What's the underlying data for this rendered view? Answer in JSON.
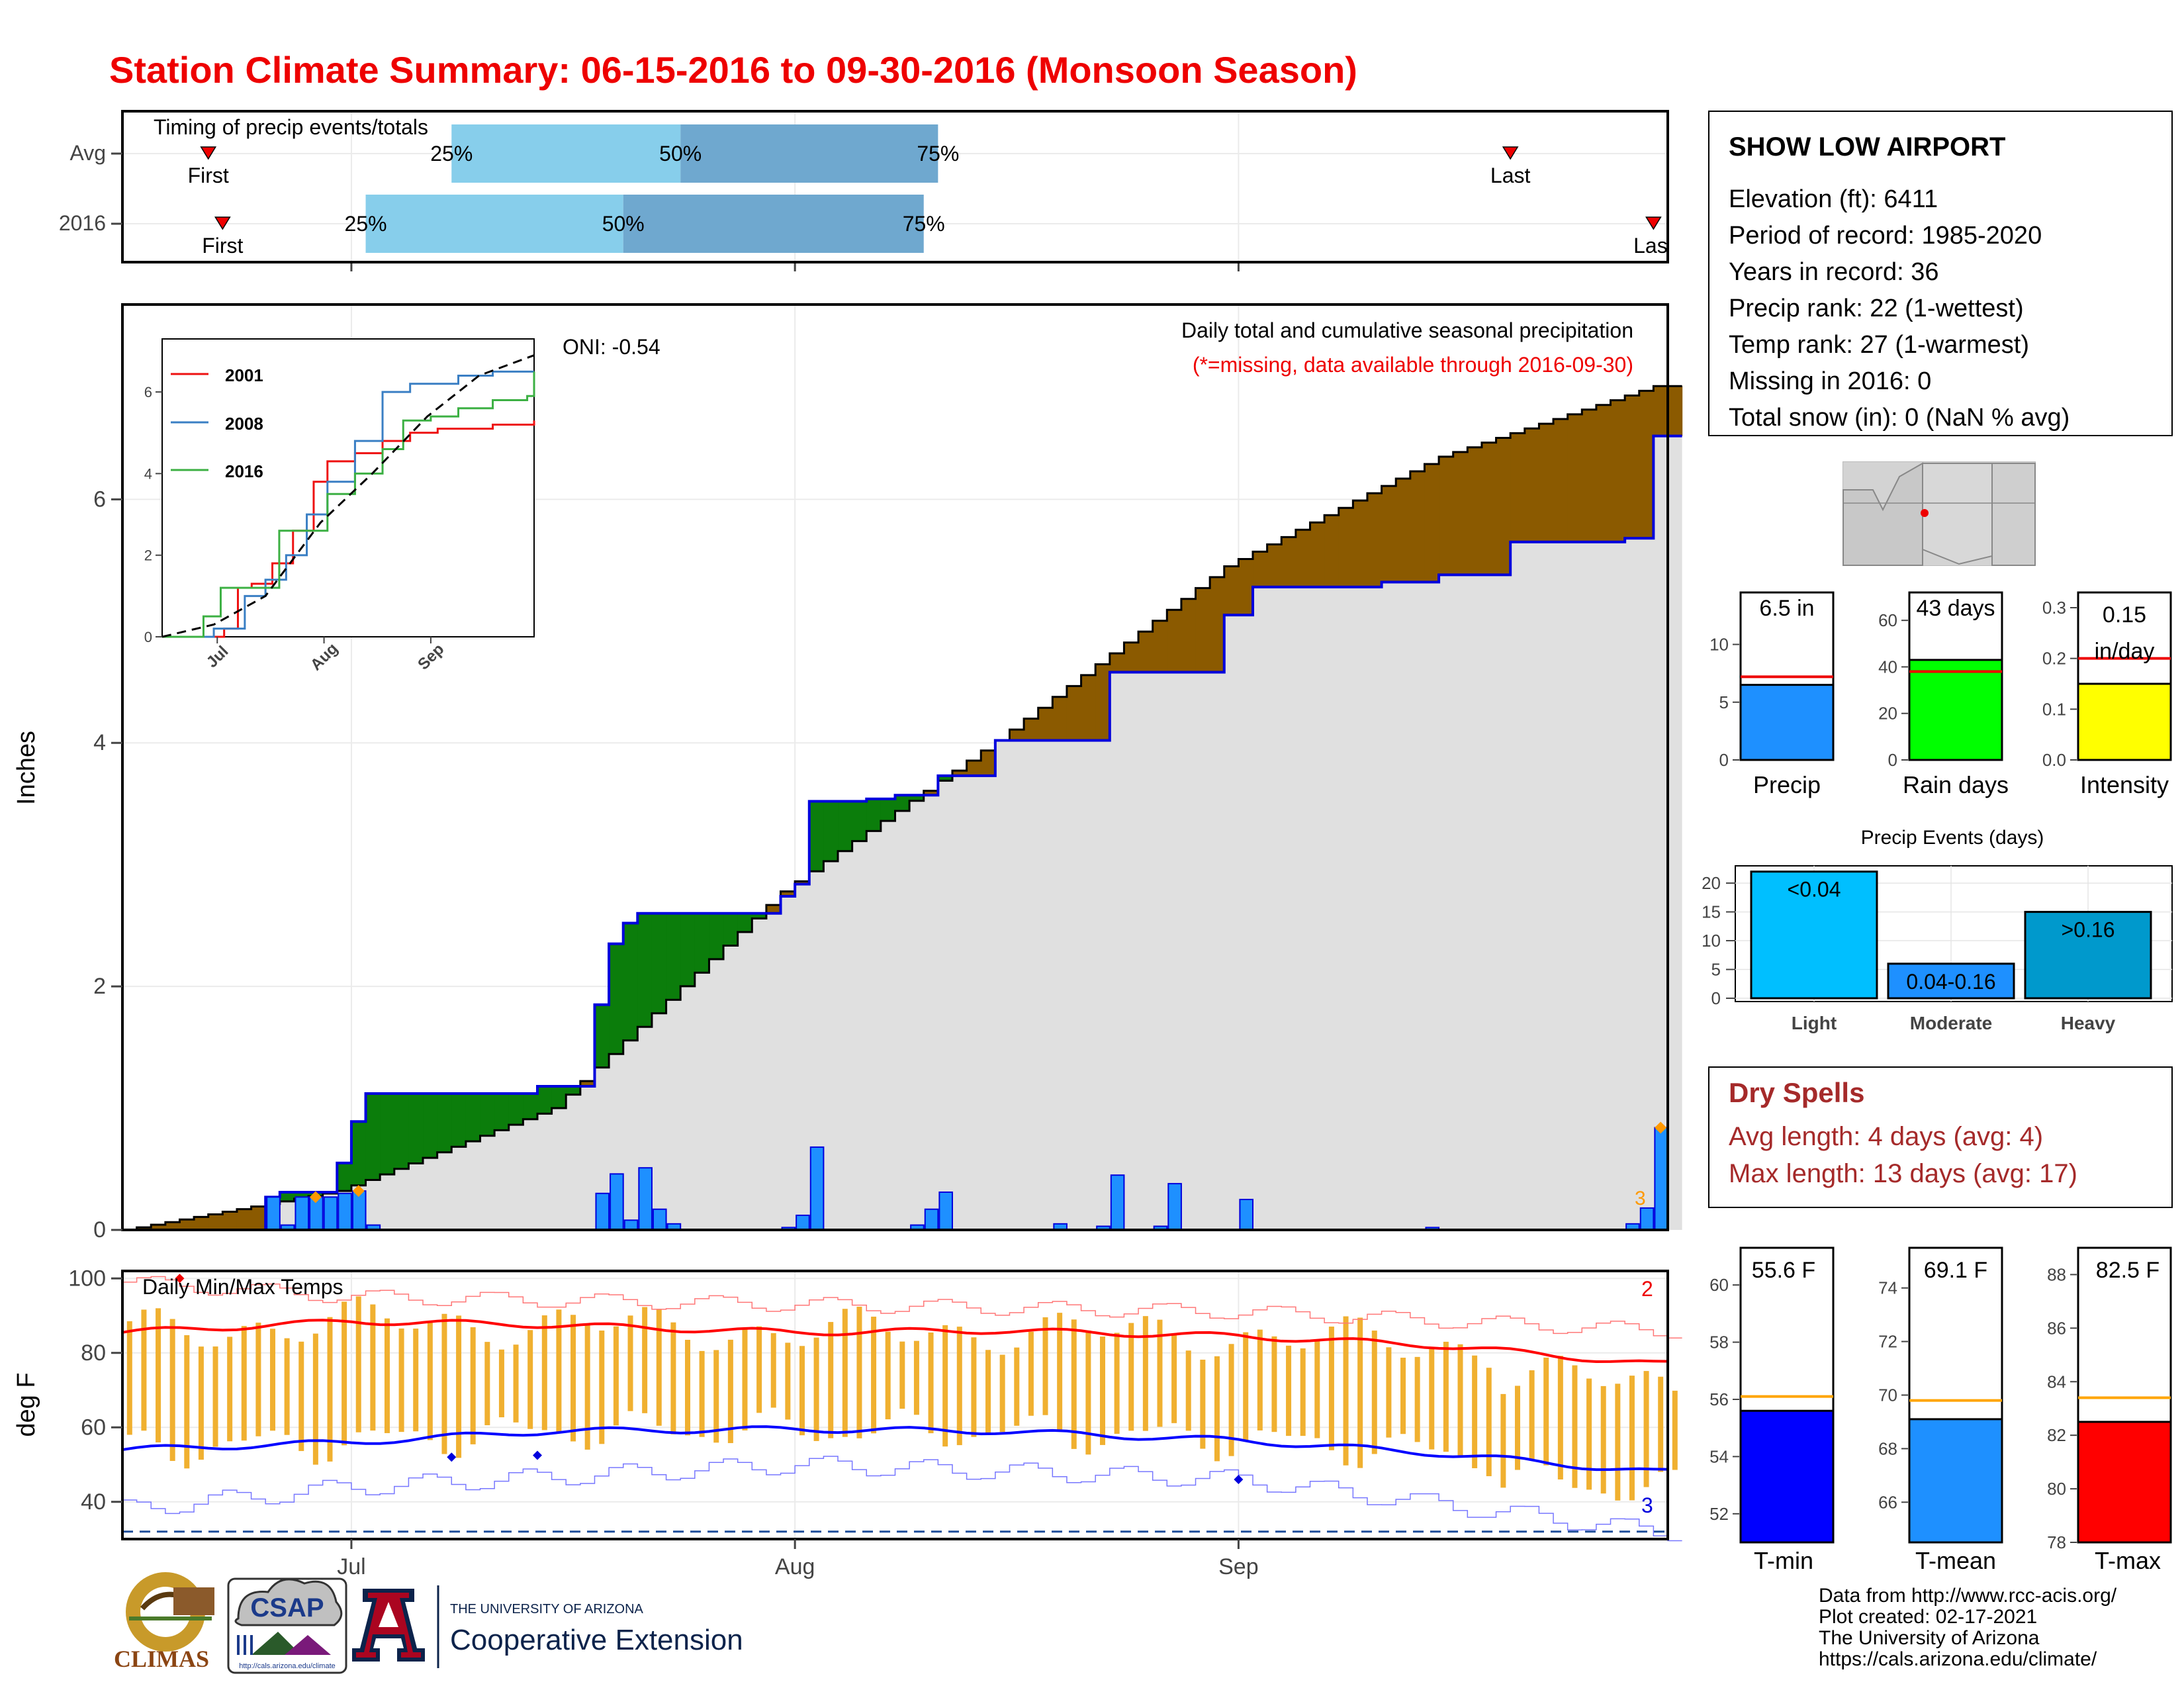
{
  "title": "Station Climate Summary: 06-15-2016 to 09-30-2016 (Monsoon Season)",
  "colors": {
    "title": "#ee0000",
    "brown": "#8b5a00",
    "green": "#0b7d0b",
    "blue_line": "#0000dd",
    "bar_blue": "#1e90ff",
    "gray_fill": "#e0e0e0",
    "tmax_red": "#ff0000",
    "tmin_blue": "#0000ff",
    "orange": "#f0b030",
    "dryspell": "#a52a2a",
    "light_blue": "#87ceeb",
    "mid_blue": "#6fa8cf",
    "event_light": "#00bfff",
    "event_moderate": "#1e90ff",
    "event_heavy": "#0099cc",
    "rain_green": "#00ff00",
    "intensity_yellow": "#ffff00",
    "precip_blue": "#1e90ff"
  },
  "timing": {
    "label": "Timing of precip events/totals",
    "rows": [
      "Avg",
      "2016"
    ],
    "first_label": "First",
    "last_label": "Last",
    "pct25": "25%",
    "pct50": "50%",
    "pct75": "75%",
    "avg_markers": {
      "first": "2016-06-21",
      "p25": "2016-07-08",
      "p50": "2016-07-24",
      "p75": "2016-08-11",
      "last": "2016-09-20"
    },
    "y2016_markers": {
      "first": "2016-06-22",
      "p25": "2016-07-02",
      "p50": "2016-07-20",
      "p75": "2016-08-10",
      "last": "2016-09-30"
    }
  },
  "station": {
    "name": "SHOW LOW AIRPORT",
    "lines": [
      "Elevation (ft): 6411",
      "Period of record: 1985-2020",
      "Years in record: 36",
      "Precip rank: 22 (1-wettest)",
      "Temp rank: 27 (1-warmest)",
      "Missing in 2016: 0",
      "Total snow (in): 0 (NaN % avg)"
    ]
  },
  "precip_panel": {
    "ylabel": "Inches",
    "subtitle": "Daily total and cumulative seasonal precipitation",
    "missing_note": "(*=missing, data available through 2016-09-30)",
    "oni": "ONI: -0.54",
    "annotation": "3",
    "yticks": [
      "0",
      "2",
      "4",
      "6"
    ]
  },
  "inset": {
    "legend": [
      "2001",
      "2008",
      "2016"
    ],
    "legend_colors": [
      "#ee1111",
      "#3a7fc4",
      "#3cb043"
    ],
    "yticks": [
      "0",
      "2",
      "4",
      "6"
    ],
    "xticks": [
      "Jul",
      "Aug",
      "Sep"
    ]
  },
  "temp_panel": {
    "ylabel": "deg F",
    "label": "Daily Min/Max Temps",
    "yticks": [
      "40",
      "60",
      "80",
      "100"
    ],
    "max_count": "2",
    "min_count": "3"
  },
  "xaxis": {
    "ticks": [
      "Jul",
      "Aug",
      "Sep"
    ]
  },
  "summary_bars": {
    "precip": {
      "label": "Precip",
      "value_label": "6.5 in",
      "yticks": [
        "0",
        "5",
        "10"
      ]
    },
    "rain_days": {
      "label": "Rain days",
      "value_label": "43 days",
      "yticks": [
        "0",
        "20",
        "40",
        "60"
      ]
    },
    "intensity": {
      "label": "Intensity",
      "value_label_1": "0.15",
      "value_label_2": "in/day",
      "yticks": [
        "0.0",
        "0.1",
        "0.2",
        "0.3"
      ]
    }
  },
  "events": {
    "title": "Precip Events (days)",
    "yticks": [
      "0",
      "5",
      "10",
      "15",
      "20"
    ],
    "categories": [
      "Light",
      "Moderate",
      "Heavy"
    ],
    "labels": [
      "<0.04",
      "0.04-0.16",
      ">0.16"
    ]
  },
  "dry_spells": {
    "title": "Dry Spells",
    "avg_line": "Avg length: 4 days (avg: 4)",
    "max_line": "Max length: 13 days (avg: 17)"
  },
  "temp_bars": {
    "tmin": {
      "label": "T-min",
      "value_label": "55.6 F",
      "yticks": [
        "52",
        "54",
        "56",
        "58",
        "60"
      ]
    },
    "tmean": {
      "label": "T-mean",
      "value_label": "69.1 F",
      "yticks": [
        "66",
        "68",
        "70",
        "72",
        "74"
      ]
    },
    "tmax": {
      "label": "T-max",
      "value_label": "82.5 F",
      "yticks": [
        "78",
        "80",
        "82",
        "84",
        "86",
        "88"
      ]
    }
  },
  "footer": {
    "lines": [
      "Data from http://www.rcc-acis.org/",
      "Plot created: 02-17-2021",
      "The University of Arizona",
      "https://cals.arizona.edu/climate/"
    ],
    "climas": "CLIMAS",
    "csap": "CSAP",
    "csap_url": "http://cals.arizona.edu/climate",
    "ua_top": "THE UNIVERSITY OF ARIZONA",
    "ua_bottom": "Cooperative Extension",
    "ua_letter": "A"
  },
  "chart_data": [
    {
      "type": "area",
      "title": "Daily total and cumulative seasonal precipitation",
      "ylabel": "Inches",
      "ylim": [
        0,
        7.6
      ],
      "x_range": [
        "2016-06-15",
        "2016-09-30"
      ],
      "series": [
        {
          "name": "2016",
          "x": [
            "2016-06-15",
            "2016-06-24",
            "2016-06-25",
            "2016-06-26",
            "2016-06-30",
            "2016-07-01",
            "2016-07-02",
            "2016-07-14",
            "2016-07-18",
            "2016-07-19",
            "2016-07-20",
            "2016-07-21",
            "2016-07-22",
            "2016-07-23",
            "2016-07-31",
            "2016-08-01",
            "2016-08-02",
            "2016-08-06",
            "2016-08-07",
            "2016-08-08",
            "2016-08-09",
            "2016-08-10",
            "2016-08-11",
            "2016-08-15",
            "2016-08-19",
            "2016-08-20",
            "2016-08-23",
            "2016-08-24",
            "2016-08-25",
            "2016-08-31",
            "2016-09-01",
            "2016-09-02",
            "2016-09-11",
            "2016-09-15",
            "2016-09-20",
            "2016-09-25",
            "2016-09-28",
            "2016-09-29",
            "2016-09-30"
          ],
          "values": [
            0,
            0,
            0.27,
            0.31,
            0.55,
            0.89,
            1.12,
            1.18,
            1.85,
            2.35,
            2.52,
            2.6,
            2.6,
            2.6,
            2.74,
            2.84,
            3.52,
            3.54,
            3.54,
            3.57,
            3.57,
            3.57,
            3.73,
            4.02,
            4.02,
            4.02,
            4.58,
            4.58,
            4.58,
            5.05,
            5.05,
            5.28,
            5.32,
            5.38,
            5.65,
            5.65,
            5.68,
            5.68,
            6.52
          ]
        },
        {
          "name": "Avg",
          "x": [
            "2016-06-15",
            "2016-06-30",
            "2016-07-15",
            "2016-07-31",
            "2016-08-15",
            "2016-08-31",
            "2016-09-15",
            "2016-09-30"
          ],
          "values": [
            0,
            0.32,
            1.0,
            2.78,
            4.02,
            5.45,
            6.35,
            6.93
          ]
        }
      ],
      "daily_bars": {
        "x": [
          "2016-06-25",
          "2016-06-26",
          "2016-06-27",
          "2016-06-28",
          "2016-06-29",
          "2016-06-30",
          "2016-07-01",
          "2016-07-02",
          "2016-07-18",
          "2016-07-19",
          "2016-07-20",
          "2016-07-21",
          "2016-07-22",
          "2016-07-23",
          "2016-07-31",
          "2016-08-01",
          "2016-08-02",
          "2016-08-09",
          "2016-08-10",
          "2016-08-11",
          "2016-08-19",
          "2016-08-22",
          "2016-08-23",
          "2016-08-26",
          "2016-08-27",
          "2016-09-01",
          "2016-09-14",
          "2016-09-28",
          "2016-09-29",
          "2016-09-30"
        ],
        "values": [
          0.27,
          0.04,
          0.27,
          0.27,
          0.27,
          0.3,
          0.32,
          0.04,
          0.3,
          0.46,
          0.08,
          0.51,
          0.17,
          0.05,
          0.02,
          0.12,
          0.68,
          0.04,
          0.17,
          0.31,
          0.05,
          0.03,
          0.45,
          0.03,
          0.38,
          0.25,
          0.02,
          0.05,
          0.18,
          0.84
        ]
      }
    },
    {
      "type": "line",
      "title": "Daily Min/Max Temps",
      "ylabel": "deg F",
      "ylim": [
        30,
        102
      ],
      "x_range": [
        "2016-06-15",
        "2016-09-30"
      ],
      "series": [
        {
          "name": "Avg max",
          "x": [
            "2016-06-15",
            "2016-07-01",
            "2016-07-15",
            "2016-08-01",
            "2016-08-15",
            "2016-09-01",
            "2016-09-15",
            "2016-09-30"
          ],
          "values": [
            85.5,
            88.5,
            87.5,
            85.5,
            86,
            84.5,
            82,
            77
          ]
        },
        {
          "name": "Avg min",
          "x": [
            "2016-06-15",
            "2016-07-01",
            "2016-07-15",
            "2016-08-01",
            "2016-08-15",
            "2016-09-01",
            "2016-09-15",
            "2016-09-30"
          ],
          "values": [
            54,
            56,
            59,
            59.5,
            59,
            56.5,
            53,
            48
          ]
        },
        {
          "name": "Record high",
          "x": [
            "2016-06-15",
            "2016-07-01",
            "2016-08-01",
            "2016-09-01",
            "2016-09-30"
          ],
          "values": [
            99,
            95,
            93,
            91,
            86
          ]
        },
        {
          "name": "Record low",
          "x": [
            "2016-06-15",
            "2016-07-01",
            "2016-08-01",
            "2016-09-01",
            "2016-09-30"
          ],
          "values": [
            38,
            44,
            50,
            46,
            32
          ]
        }
      ]
    },
    {
      "type": "bar",
      "title": "Precip Events (days)",
      "categories": [
        "Light",
        "Moderate",
        "Heavy"
      ],
      "values": [
        22,
        6,
        15
      ],
      "ylim": [
        0,
        23
      ]
    },
    {
      "type": "bar",
      "categories": [
        "Precip",
        "Rain days",
        "Intensity",
        "T-min",
        "T-mean",
        "T-max"
      ],
      "values": [
        6.5,
        43,
        0.15,
        55.6,
        69.1,
        82.5
      ],
      "averages": [
        7.2,
        38,
        0.2,
        56.1,
        69.8,
        83.4
      ]
    }
  ]
}
